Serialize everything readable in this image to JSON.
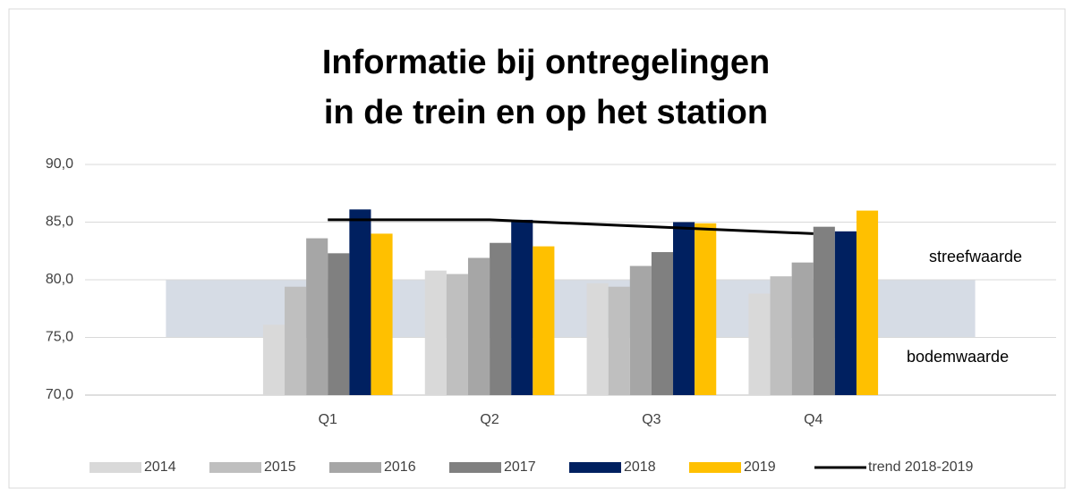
{
  "chart_data": {
    "type": "bar",
    "title": [
      "Informatie bij ontregelingen",
      "in de trein en op het station"
    ],
    "categories": [
      null,
      "Q1",
      "Q2",
      "Q3",
      "Q4",
      null
    ],
    "series": [
      {
        "name": "2014",
        "color": "#d9d9d9",
        "values": [
          null,
          76.1,
          80.8,
          79.7,
          78.8,
          null
        ]
      },
      {
        "name": "2015",
        "color": "#bfbfbf",
        "values": [
          null,
          79.4,
          80.5,
          79.4,
          80.3,
          null
        ]
      },
      {
        "name": "2016",
        "color": "#a6a6a6",
        "values": [
          null,
          83.6,
          81.9,
          81.2,
          81.5,
          null
        ]
      },
      {
        "name": "2017",
        "color": "#808080",
        "values": [
          null,
          82.3,
          83.2,
          82.4,
          84.6,
          null
        ]
      },
      {
        "name": "2018",
        "color": "#002060",
        "values": [
          null,
          86.1,
          85.2,
          85.0,
          84.2,
          null
        ]
      },
      {
        "name": "2019",
        "color": "#ffc000",
        "values": [
          null,
          84.0,
          82.9,
          84.9,
          86.0,
          null
        ]
      }
    ],
    "trend": {
      "name": "trend 2018-2019",
      "color": "#000000",
      "values": [
        null,
        85.2,
        85.2,
        84.6,
        84.0,
        null
      ]
    },
    "band": {
      "color": "#d6dce5",
      "lower": [
        75,
        75,
        75,
        75,
        75,
        75
      ],
      "upper": [
        80,
        80,
        80,
        80,
        80,
        80
      ],
      "upper_label": "streefwaarde",
      "lower_label": "bodemwaarde"
    },
    "ylim": [
      70,
      90
    ],
    "yticks": [
      {
        "value": 70,
        "label": "70,0"
      },
      {
        "value": 75,
        "label": "75,0"
      },
      {
        "value": 80,
        "label": "80,0"
      },
      {
        "value": 85,
        "label": "85,0"
      },
      {
        "value": 90,
        "label": "90,0"
      }
    ],
    "grid": true
  }
}
